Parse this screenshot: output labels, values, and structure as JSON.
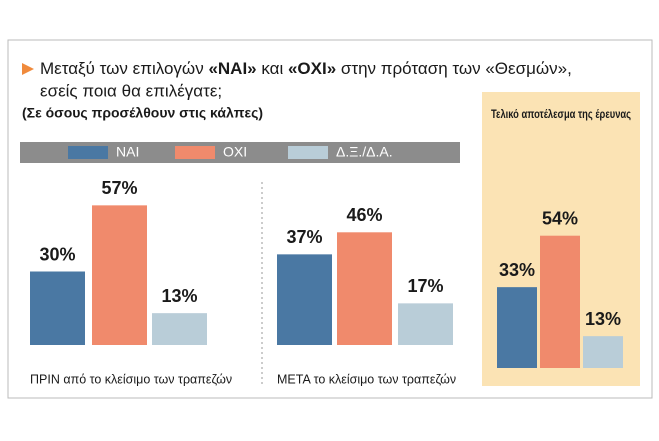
{
  "chart_data": {
    "type": "bar",
    "title": [
      "Μεταξύ των επιλογών ",
      "«ΝΑΙ»",
      " και ",
      "«ΟΧΙ»",
      " στην πρόταση των «Θεσμών»,"
    ],
    "title_line2": "εσείς ποια θα επιλέγατε;",
    "subtitle": "(Σε όσους προσέλθουν στις κάλπες)",
    "categories": [
      "ΠΡΙΝ από το κλείσιμο των τραπεζών",
      "ΜΕΤΑ το κλείσιμο των τραπεζών",
      "Τελικό αποτέλεσμα της έρευνας"
    ],
    "series": [
      {
        "name": "ΝΑΙ",
        "color": "#4a78a3",
        "values": [
          30,
          37,
          33
        ],
        "value_labels": [
          "30%",
          "37%",
          "33%"
        ]
      },
      {
        "name": "ΟΧΙ",
        "color": "#f08a6c",
        "values": [
          57,
          46,
          54
        ],
        "value_labels": [
          "57%",
          "46%",
          "54%"
        ]
      },
      {
        "name": "Δ.Ξ./Δ.Α.",
        "color": "#b9cdd8",
        "values": [
          13,
          17,
          13
        ],
        "value_labels": [
          "13%",
          "17%",
          "13%"
        ]
      }
    ]
  }
}
